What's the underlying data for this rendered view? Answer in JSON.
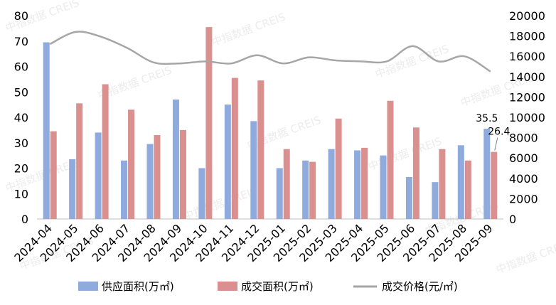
{
  "chart_data": {
    "type": "bar",
    "categories": [
      "2024-04",
      "2024-05",
      "2024-06",
      "2024-07",
      "2024-08",
      "2024-09",
      "2024-10",
      "2024-11",
      "2024-12",
      "2025-01",
      "2025-02",
      "2025-03",
      "2025-04",
      "2025-05",
      "2025-06",
      "2025-07",
      "2025-08",
      "2025-09"
    ],
    "series": [
      {
        "name": "供应面积(万㎡)",
        "type": "bar",
        "axis": "left",
        "color": "#8faadc",
        "values": [
          69.5,
          23.5,
          34,
          23,
          29.5,
          47,
          20,
          45,
          38.5,
          20,
          23,
          27.5,
          27,
          25,
          16.5,
          14.5,
          29,
          35.5
        ]
      },
      {
        "name": "成交面积(万㎡)",
        "type": "bar",
        "axis": "left",
        "color": "#d9908f",
        "values": [
          34.5,
          45.5,
          53,
          43,
          33,
          35,
          75.5,
          55.5,
          54.5,
          27.5,
          22.5,
          39.5,
          28,
          46.5,
          36,
          27.5,
          23,
          26.4
        ]
      },
      {
        "name": "成交价格(元/㎡)",
        "type": "line",
        "axis": "right",
        "color": "#a6a6a6",
        "values": [
          17200,
          18400,
          17900,
          16800,
          15400,
          15300,
          15500,
          15300,
          16100,
          15300,
          15900,
          15600,
          15500,
          15500,
          17000,
          15500,
          16000,
          14500
        ]
      }
    ],
    "left_axis": {
      "ylim": [
        0,
        80
      ],
      "ticks": [
        "0",
        "10",
        "20",
        "30",
        "40",
        "50",
        "60",
        "70",
        "80"
      ]
    },
    "right_axis": {
      "ylim": [
        0,
        20000
      ],
      "ticks": [
        "0",
        "2000",
        "4000",
        "6000",
        "8000",
        "10000",
        "12000",
        "14000",
        "16000",
        "18000",
        "20000"
      ]
    },
    "data_labels": [
      "35.5",
      "26.4"
    ],
    "legend": {
      "position": "bottom"
    },
    "watermark": "中指数据 CREIS",
    "grid": false
  }
}
